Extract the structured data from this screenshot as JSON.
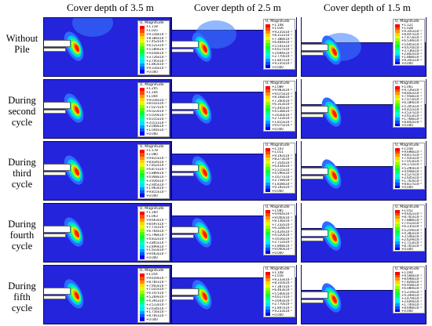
{
  "columns": [
    {
      "title": "Cover depth of 3.5 m"
    },
    {
      "title": "Cover depth of 2.5 m"
    },
    {
      "title": "Cover depth of 1.5 m"
    }
  ],
  "rows": [
    {
      "label": "Without\nPile"
    },
    {
      "label": "During\nsecond\ncycle"
    },
    {
      "label": "During\nthird\ncycle"
    },
    {
      "label": "During\nfourth\ncycle"
    },
    {
      "label": "During\nfifth\ncycle"
    }
  ],
  "legend_title": "U, Magnitude",
  "legend_colors": [
    "#ff0000",
    "#ff4a00",
    "#ff9400",
    "#ffd500",
    "#e1ff00",
    "#97ff00",
    "#4cff00",
    "#00ff37",
    "#00ff82",
    "#00ffcc",
    "#00e5ff",
    "#009bff",
    "#0051ff",
    "#0000f0"
  ],
  "legends": [
    [
      [
        "+1.118",
        "+1.025",
        "+9.318x10⁻¹",
        "+8.384x10⁻¹",
        "+7.452x10⁻¹",
        "+6.521x10⁻¹",
        "+5.589x10⁻¹",
        "+4.658x10⁻¹",
        "+3.726x10⁻¹",
        "+2.795x10⁻¹",
        "+1.863x10⁻¹",
        "+9.316x10⁻²",
        "+0.000"
      ],
      [
        "+1.108",
        "+1.016",
        "+9.235x10⁻¹",
        "+8.311x10⁻¹",
        "+7.388x10⁻¹",
        "+6.464x10⁻¹",
        "+5.541x10⁻¹",
        "+4.617x10⁻¹",
        "+3.694x10⁻¹",
        "+2.770x10⁻¹",
        "+1.847x10⁻¹",
        "+9.235x10⁻²",
        "+0.000"
      ],
      [
        "+1.121",
        "+1.028",
        "+9.341x10⁻¹",
        "+8.407x10⁻¹",
        "+7.473x10⁻¹",
        "+6.539x10⁻¹",
        "+5.605x10⁻¹",
        "+4.670x10⁻¹",
        "+3.736x10⁻¹",
        "+2.802x10⁻¹",
        "+1.868x10⁻¹",
        "+9.341x10⁻²",
        "+0.000"
      ]
    ],
    [
      [
        "+1.205",
        "+1.104",
        "+1.004",
        "+9.034x10⁻¹",
        "+8.031x10⁻¹",
        "+7.027x10⁻¹",
        "+6.023x10⁻¹",
        "+5.019x10⁻¹",
        "+4.015x10⁻¹",
        "+3.011x10⁻¹",
        "+2.008x10⁻¹",
        "+1.004x10⁻¹",
        "+0.000"
      ],
      [
        "+1.089",
        "+9.983x10⁻¹",
        "+9.075x10⁻¹",
        "+8.168x10⁻¹",
        "+7.260x10⁻¹",
        "+6.353x10⁻¹",
        "+5.445x10⁻¹",
        "+4.538x10⁻¹",
        "+3.630x10⁻¹",
        "+2.723x10⁻¹",
        "+1.815x10⁻¹",
        "+9.075x10⁻²",
        "+0.000"
      ],
      [
        "+1.061",
        "+9.726x10⁻¹",
        "+8.842x10⁻¹",
        "+7.958x10⁻¹",
        "+7.073x10⁻¹",
        "+6.189x10⁻¹",
        "+5.305x10⁻¹",
        "+4.421x10⁻¹",
        "+3.537x10⁻¹",
        "+2.653x10⁻¹",
        "+1.768x10⁻¹",
        "+8.842x10⁻²",
        "+0.000"
      ]
    ],
    [
      [
        "+1.178",
        "+1.080",
        "+9.815x10⁻¹",
        "+8.834x10⁻¹",
        "+7.852x10⁻¹",
        "+6.871x10⁻¹",
        "+5.889x10⁻¹",
        "+4.908x10⁻¹",
        "+3.926x10⁻¹",
        "+2.945x10⁻¹",
        "+1.963x10⁻¹",
        "+9.815x10⁻²",
        "+0.000"
      ],
      [
        "+1.103",
        "+1.011",
        "+9.192x10⁻¹",
        "+8.273x10⁻¹",
        "+7.354x10⁻¹",
        "+6.434x10⁻¹",
        "+5.515x10⁻¹",
        "+4.596x10⁻¹",
        "+3.677x10⁻¹",
        "+2.758x10⁻¹",
        "+1.838x10⁻¹",
        "+9.192x10⁻²",
        "+0.000"
      ],
      [
        "+1.058",
        "+9.698x10⁻¹",
        "+8.817x10⁻¹",
        "+7.935x10⁻¹",
        "+7.053x10⁻¹",
        "+6.172x10⁻¹",
        "+5.290x10⁻¹",
        "+4.408x10⁻¹",
        "+3.527x10⁻¹",
        "+2.645x10⁻¹",
        "+1.763x10⁻¹",
        "+8.817x10⁻²",
        "+0.000"
      ]
    ],
    [
      [
        "+1.160",
        "+1.063",
        "+9.663x10⁻¹",
        "+8.697x10⁻¹",
        "+7.731x10⁻¹",
        "+6.764x10⁻¹",
        "+5.798x10⁻¹",
        "+4.832x10⁻¹",
        "+3.865x10⁻¹",
        "+2.899x10⁻¹",
        "+1.933x10⁻¹",
        "+9.663x10⁻²",
        "+0.000"
      ],
      [
        "+1.085",
        "+9.944x10⁻¹",
        "+9.040x10⁻¹",
        "+8.136x10⁻¹",
        "+7.232x10⁻¹",
        "+6.328x10⁻¹",
        "+5.424x10⁻¹",
        "+4.520x10⁻¹",
        "+3.616x10⁻¹",
        "+2.712x10⁻¹",
        "+1.808x10⁻¹",
        "+9.040x10⁻²",
        "+0.000"
      ],
      [
        "+1.052",
        "+9.641x10⁻¹",
        "+8.765x10⁻¹",
        "+7.888x10⁻¹",
        "+7.012x10⁻¹",
        "+6.135x10⁻¹",
        "+5.259x10⁻¹",
        "+4.382x10⁻¹",
        "+3.506x10⁻¹",
        "+2.629x10⁻¹",
        "+1.753x10⁻¹",
        "+8.765x10⁻²",
        "+0.000"
      ]
    ],
    [
      [
        "+1.054",
        "+9.659x10⁻¹",
        "+8.781x10⁻¹",
        "+7.903x10⁻¹",
        "+7.025x10⁻¹",
        "+6.147x10⁻¹",
        "+5.269x10⁻¹",
        "+4.391x10⁻¹",
        "+3.513x10⁻¹",
        "+2.634x10⁻¹",
        "+1.756x10⁻¹",
        "+8.781x10⁻²",
        "+0.000"
      ],
      [
        "+1.108",
        "+1.016",
        "+9.233x10⁻¹",
        "+8.310x10⁻¹",
        "+7.387x10⁻¹",
        "+6.463x10⁻¹",
        "+5.540x10⁻¹",
        "+4.617x10⁻¹",
        "+3.693x10⁻¹",
        "+2.770x10⁻¹",
        "+1.847x10⁻¹",
        "+9.233x10⁻²",
        "+0.000"
      ],
      [
        "+1.044",
        "+9.568x10⁻¹",
        "+8.698x10⁻¹",
        "+7.828x10⁻¹",
        "+6.958x10⁻¹",
        "+6.089x10⁻¹",
        "+5.219x10⁻¹",
        "+4.349x10⁻¹",
        "+3.479x10⁻¹",
        "+2.609x10⁻¹",
        "+1.740x10⁻¹",
        "+8.698x10⁻²",
        "+0.000"
      ]
    ]
  ]
}
